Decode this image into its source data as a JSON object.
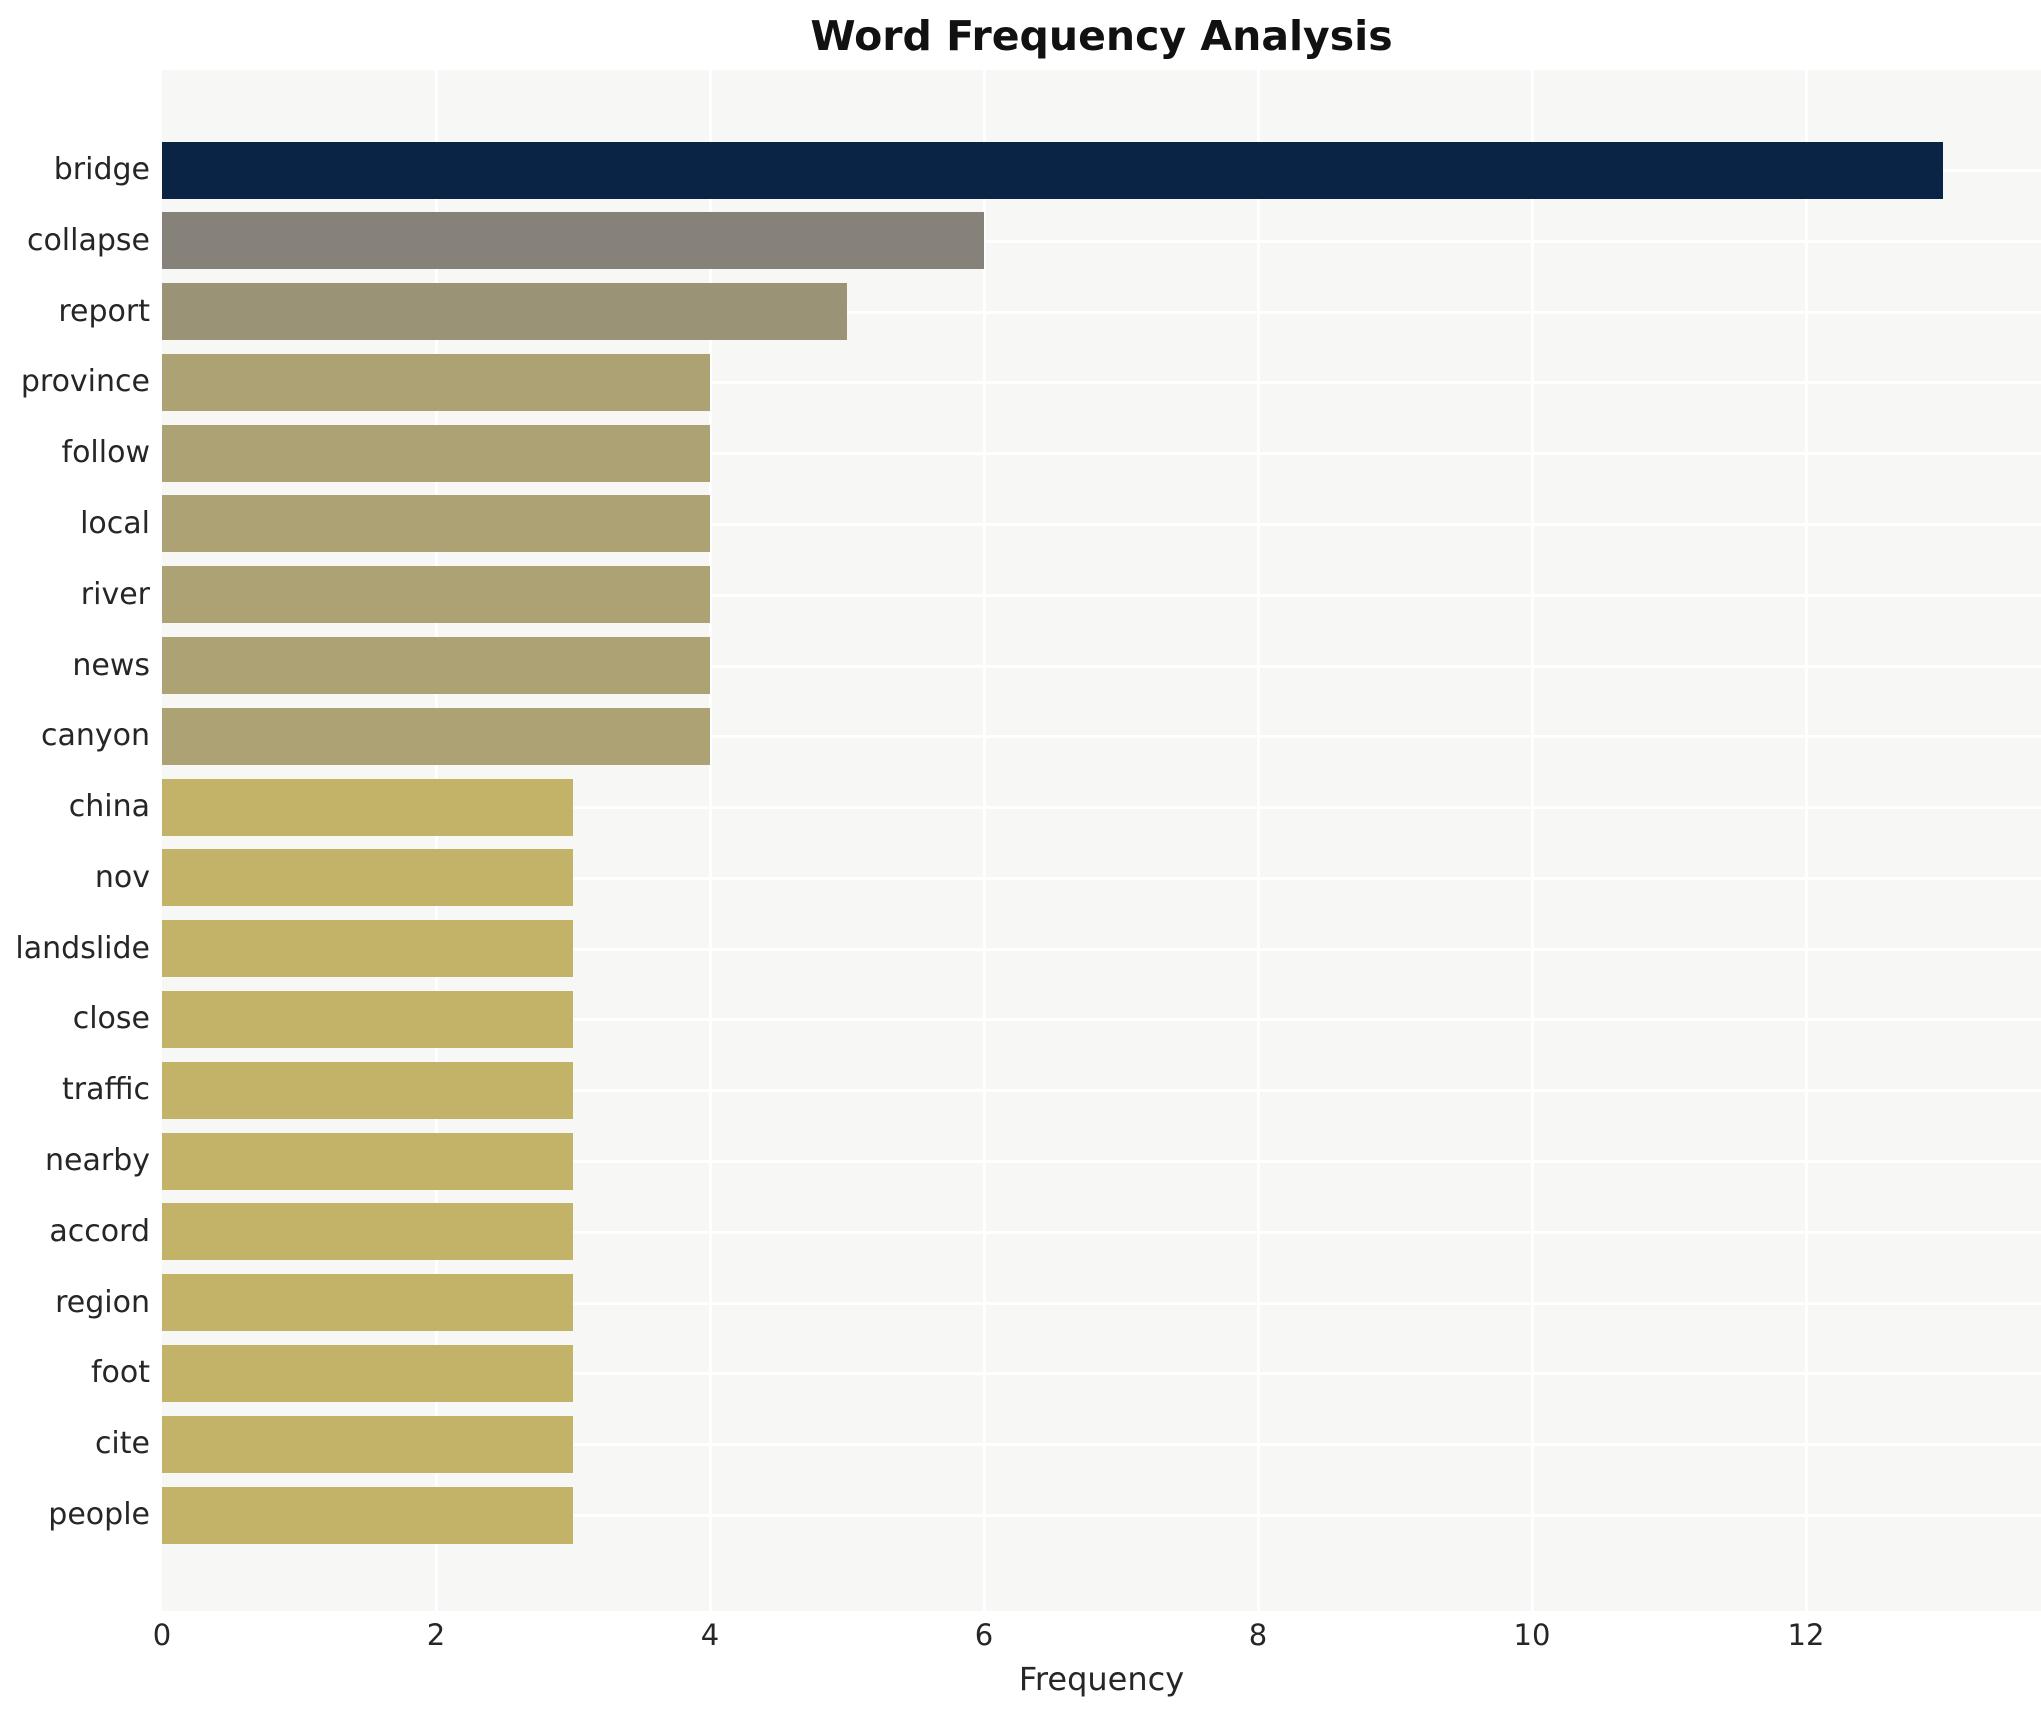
{
  "title": "Word Frequency Analysis",
  "chart_data": {
    "type": "bar",
    "orientation": "horizontal",
    "title": "Word Frequency Analysis",
    "xlabel": "Frequency",
    "ylabel": "",
    "categories": [
      "bridge",
      "collapse",
      "report",
      "province",
      "follow",
      "local",
      "river",
      "news",
      "canyon",
      "china",
      "nov",
      "landslide",
      "close",
      "traffic",
      "nearby",
      "accord",
      "region",
      "foot",
      "cite",
      "people"
    ],
    "values": [
      13,
      6,
      5,
      4,
      4,
      4,
      4,
      4,
      4,
      3,
      3,
      3,
      3,
      3,
      3,
      3,
      3,
      3,
      3,
      3
    ],
    "xlim": [
      0,
      13.72
    ],
    "xticks": [
      0,
      2,
      4,
      6,
      8,
      10,
      12
    ],
    "grid": true,
    "legend": "none",
    "value_colors": {
      "13": "#0a2446",
      "6": "#86827a",
      "5": "#9a9375",
      "4": "#aca273",
      "3": "#c2b368"
    },
    "plot_background": "#f7f7f6",
    "gridline_color": "#ffffff",
    "text_color": "#262626",
    "title_color": "#111111"
  }
}
